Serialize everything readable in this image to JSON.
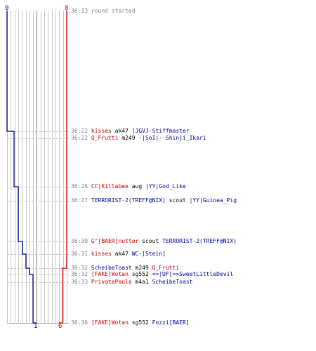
{
  "colors": {
    "team_blue": "#000099",
    "team_red": "#cc0000",
    "grid": "#c8c8c8",
    "grid_dark": "#7f7f7f",
    "time": "#808080"
  },
  "counts": {
    "blue_top": "9",
    "red_top": "8",
    "blue_bottom": "1",
    "red_bottom": "6"
  },
  "events": [
    {
      "time": "36:13",
      "text": "round started"
    },
    {
      "time": "36:22",
      "killer": "kisses",
      "killer_team": "red",
      "weapon": "ak47",
      "victim": "[JGVJ-Stiffmaster",
      "victim_team": "blue"
    },
    {
      "time": "36:22",
      "killer": "Q_Frutti",
      "killer_team": "red",
      "weapon": "m249",
      "victim": "-|SoI|- Shinji_Ikari",
      "victim_team": "blue"
    },
    {
      "time": "36:26",
      "killer": "CC|Killabee",
      "killer_team": "red",
      "weapon": "aug",
      "victim": "|YY|God_Like",
      "victim_team": "blue"
    },
    {
      "time": "36:27",
      "killer": "TERRORIST-2(TREFF@NIX)",
      "killer_team": "blue",
      "weapon": "scout",
      "victim": "|YY|Guinea_Pig",
      "victim_team": "blue"
    },
    {
      "time": "36:30",
      "killer": "G^[BAER]nutter",
      "killer_team": "red",
      "weapon": "scout",
      "victim": "TERRORIST-2(TREFF@NIX)",
      "victim_team": "blue"
    },
    {
      "time": "36:31",
      "killer": "kisses",
      "killer_team": "red",
      "weapon": "ak47",
      "victim": "WC-[Stein]",
      "victim_team": "blue"
    },
    {
      "time": "36:32",
      "killer": "ScheibeToast",
      "killer_team": "blue",
      "weapon": "m249",
      "victim": "Q_Frutti",
      "victim_team": "red"
    },
    {
      "time": "36:32",
      "killer": "[FAKE]Wotan",
      "killer_team": "red",
      "weapon": "sg552",
      "victim": "<=]UF[=>SweetLittleDevil",
      "victim_team": "blue"
    },
    {
      "time": "36:33",
      "killer": "PrivatePaula",
      "killer_team": "red",
      "weapon": "m4a1",
      "victim": "ScheibeToast",
      "victim_team": "blue"
    },
    {
      "time": "36:36",
      "killer": "[FAKE]Wotan",
      "killer_team": "red",
      "weapon": "sg552",
      "victim": "Fozzi[BAER]",
      "victim_team": "blue"
    }
  ]
}
